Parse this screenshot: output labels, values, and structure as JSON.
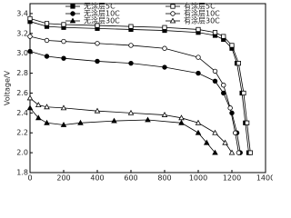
{
  "chart_data": {
    "type": "line",
    "y_label": "Voltage/V",
    "xlim": [
      0,
      1400
    ],
    "ylim": [
      1.8,
      3.5
    ],
    "xticks": [
      0,
      200,
      400,
      600,
      800,
      1000,
      1200,
      1400
    ],
    "yticks": [
      1.8,
      {
        "value": 2,
        "label": "2.0"
      },
      2.2,
      2.4,
      2.6,
      2.8,
      {
        "value": 3,
        "label": "3.0"
      },
      3.2,
      3.4
    ],
    "series": [
      {
        "name": "无涂层5C",
        "color": "#000000",
        "marker": "square-filled",
        "x": [
          0,
          100,
          200,
          400,
          600,
          800,
          1000,
          1100,
          1150,
          1200,
          1230,
          1260,
          1280,
          1300
        ],
        "values": [
          3.32,
          3.27,
          3.26,
          3.25,
          3.24,
          3.23,
          3.21,
          3.18,
          3.14,
          3.05,
          2.9,
          2.6,
          2.3,
          2.0
        ]
      },
      {
        "name": "有涂层5C",
        "color": "#000000",
        "marker": "square-open",
        "x": [
          0,
          100,
          200,
          400,
          600,
          800,
          1000,
          1100,
          1150,
          1200,
          1240,
          1270,
          1290,
          1310
        ],
        "values": [
          3.35,
          3.3,
          3.29,
          3.28,
          3.27,
          3.26,
          3.24,
          3.21,
          3.17,
          3.08,
          2.9,
          2.6,
          2.3,
          2.0
        ]
      },
      {
        "name": "无涂层10C",
        "color": "#000000",
        "marker": "circle-filled",
        "x": [
          0,
          100,
          200,
          400,
          600,
          800,
          1000,
          1100,
          1150,
          1200,
          1230,
          1250
        ],
        "values": [
          3.02,
          2.97,
          2.95,
          2.92,
          2.9,
          2.86,
          2.8,
          2.72,
          2.6,
          2.4,
          2.2,
          2.0
        ]
      },
      {
        "name": "有涂层10C",
        "color": "#000000",
        "marker": "circle-open",
        "x": [
          0,
          100,
          200,
          400,
          600,
          800,
          1000,
          1100,
          1150,
          1190,
          1220,
          1240
        ],
        "values": [
          3.17,
          3.13,
          3.12,
          3.1,
          3.08,
          3.05,
          2.96,
          2.82,
          2.68,
          2.45,
          2.2,
          2.0
        ]
      },
      {
        "name": "无涂层30C",
        "color": "#000000",
        "marker": "triangle-filled",
        "x": [
          0,
          50,
          100,
          200,
          300,
          500,
          700,
          900,
          1000,
          1050,
          1100
        ],
        "values": [
          2.45,
          2.35,
          2.3,
          2.28,
          2.3,
          2.32,
          2.33,
          2.3,
          2.2,
          2.1,
          2.0
        ]
      },
      {
        "name": "有涂层30C",
        "color": "#000000",
        "marker": "triangle-open",
        "x": [
          0,
          50,
          100,
          200,
          400,
          600,
          800,
          900,
          1000,
          1100,
          1160,
          1200
        ],
        "values": [
          2.55,
          2.48,
          2.46,
          2.45,
          2.42,
          2.4,
          2.38,
          2.35,
          2.3,
          2.2,
          2.1,
          2.0
        ]
      }
    ]
  }
}
